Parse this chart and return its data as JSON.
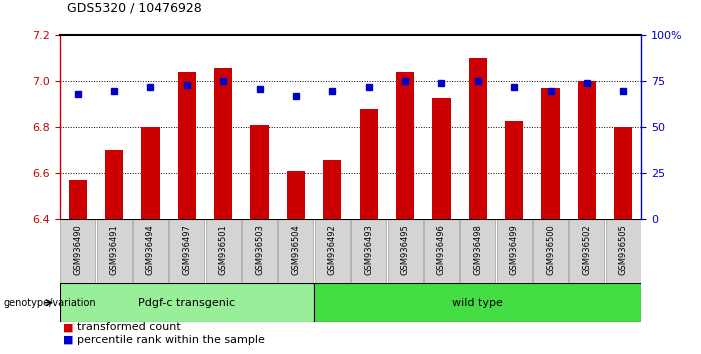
{
  "title": "GDS5320 / 10476928",
  "categories": [
    "GSM936490",
    "GSM936491",
    "GSM936494",
    "GSM936497",
    "GSM936501",
    "GSM936503",
    "GSM936504",
    "GSM936492",
    "GSM936493",
    "GSM936495",
    "GSM936496",
    "GSM936498",
    "GSM936499",
    "GSM936500",
    "GSM936502",
    "GSM936505"
  ],
  "bar_values": [
    6.57,
    6.7,
    6.8,
    7.04,
    7.06,
    6.81,
    6.61,
    6.66,
    6.88,
    7.04,
    6.93,
    7.1,
    6.83,
    6.97,
    7.0,
    6.8
  ],
  "percentile_values": [
    68,
    70,
    72,
    73,
    75,
    71,
    67,
    70,
    72,
    75,
    74,
    75,
    72,
    70,
    74,
    70
  ],
  "bar_color": "#cc0000",
  "dot_color": "#0000cc",
  "ylim_left": [
    6.4,
    7.2
  ],
  "ylim_right": [
    0,
    100
  ],
  "yticks_left": [
    6.4,
    6.6,
    6.8,
    7.0,
    7.2
  ],
  "yticks_right": [
    0,
    25,
    50,
    75,
    100
  ],
  "grid_values": [
    6.6,
    6.8,
    7.0
  ],
  "group1_label": "Pdgf-c transgenic",
  "group2_label": "wild type",
  "group1_count": 7,
  "group2_count": 9,
  "group1_color": "#99ee99",
  "group2_color": "#44dd44",
  "xlabel_genotype": "genotype/variation",
  "legend_bar": "transformed count",
  "legend_dot": "percentile rank within the sample",
  "bar_width": 0.5,
  "cell_color": "#d4d4d4",
  "cell_border_color": "#888888"
}
